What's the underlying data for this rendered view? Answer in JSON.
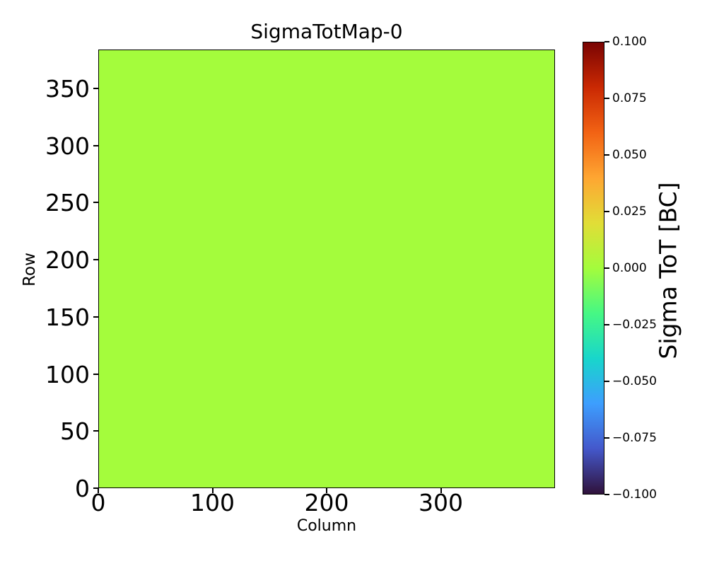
{
  "figure": {
    "background": "#ffffff",
    "text_color": "#000000"
  },
  "chart_data": {
    "type": "heatmap",
    "title": "SigmaTotMap-0",
    "xlabel": "Column",
    "ylabel": "Row",
    "x_range": [
      0,
      400
    ],
    "y_range": [
      0,
      384
    ],
    "x_ticks": [
      0,
      100,
      200,
      300
    ],
    "y_ticks": [
      0,
      50,
      100,
      150,
      200,
      250,
      300,
      350
    ],
    "grid": false,
    "data_description": "uniform map, every pixel has the same value",
    "uniform_value": 0.0,
    "uniform_value_color": "#a4fc3c",
    "colormap": "turbo",
    "colorbar": {
      "label": "Sigma ToT [BC]",
      "range": [
        -0.1,
        0.1
      ],
      "tick_values": [
        0.1,
        0.075,
        0.05,
        0.025,
        0.0,
        -0.025,
        -0.05,
        -0.075,
        -0.1
      ],
      "tick_labels": [
        "0.100",
        "0.075",
        "0.050",
        "0.025",
        "0.000",
        "−0.025",
        "−0.050",
        "−0.075",
        "−0.100"
      ],
      "gradient_top_to_bottom": [
        {
          "pos": 0.0,
          "color": "#7a0403"
        },
        {
          "pos": 0.1,
          "color": "#ca2903"
        },
        {
          "pos": 0.2,
          "color": "#f26314"
        },
        {
          "pos": 0.3,
          "color": "#fea632"
        },
        {
          "pos": 0.4,
          "color": "#e1dd37"
        },
        {
          "pos": 0.5,
          "color": "#a4fc3c"
        },
        {
          "pos": 0.6,
          "color": "#46f884"
        },
        {
          "pos": 0.7,
          "color": "#18d6cb"
        },
        {
          "pos": 0.8,
          "color": "#3d9efe"
        },
        {
          "pos": 0.9,
          "color": "#4458cb"
        },
        {
          "pos": 1.0,
          "color": "#30123b"
        }
      ]
    }
  }
}
